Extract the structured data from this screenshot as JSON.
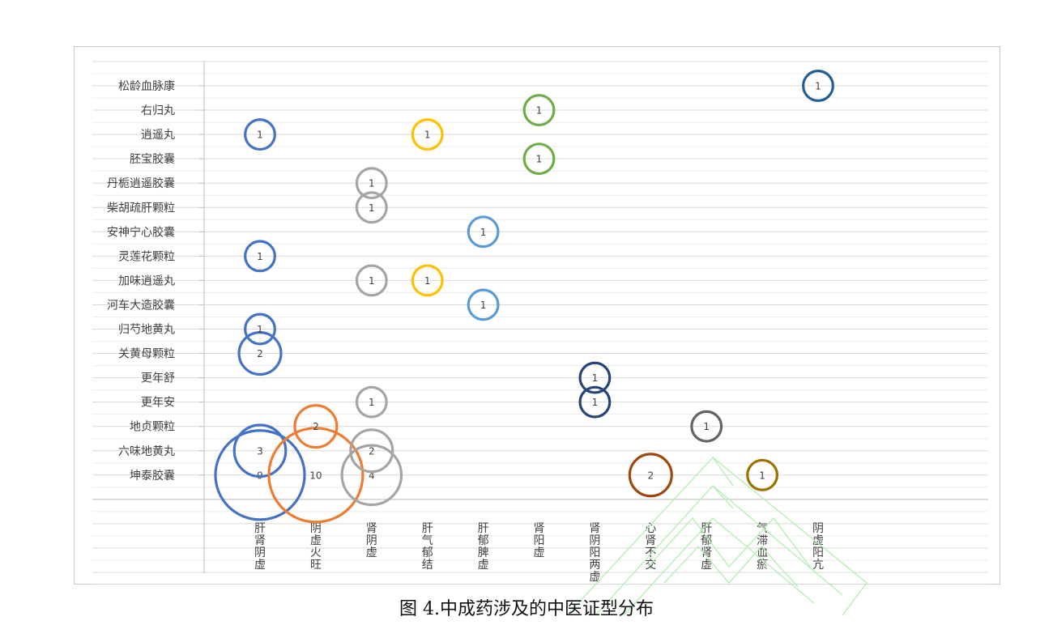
{
  "caption": "图 4.中成药涉及的中医证型分布",
  "chart_data": {
    "type": "bubble",
    "title": "",
    "xlabel": "",
    "ylabel": "",
    "grid": true,
    "legend": "none",
    "x_categories": [
      "肝肾阴虚",
      "阴虚火旺",
      "肾阴虚",
      "肝气郁结",
      "肝郁脾虚",
      "肾阳虚",
      "肾阴阳两虚",
      "心肾不交",
      "肝郁肾虚",
      "气滞血瘀",
      "阴虚阳亢"
    ],
    "y_categories": [
      "坤泰胶囊",
      "六味地黄丸",
      "地贞颗粒",
      "更年安",
      "更年舒",
      "关黄母颗粒",
      "归芍地黄丸",
      "河车大造胶囊",
      "加味逍遥丸",
      "灵莲花颗粒",
      "安神宁心胶囊",
      "柴胡疏肝颗粒",
      "丹栀逍遥胶囊",
      "胚宝胶囊",
      "逍遥丸",
      "右归丸",
      "松龄血脉康"
    ],
    "series": [
      {
        "color": "#4472c4",
        "points": [
          {
            "x": "肝肾阴虚",
            "y": "坤泰胶囊",
            "value": 9
          },
          {
            "x": "肝肾阴虚",
            "y": "六味地黄丸",
            "value": 3
          },
          {
            "x": "肝肾阴虚",
            "y": "关黄母颗粒",
            "value": 2
          },
          {
            "x": "肝肾阴虚",
            "y": "归芍地黄丸",
            "value": 1
          },
          {
            "x": "肝肾阴虚",
            "y": "灵莲花颗粒",
            "value": 1
          },
          {
            "x": "肝肾阴虚",
            "y": "逍遥丸",
            "value": 1
          }
        ]
      },
      {
        "color": "#ed7d31",
        "points": [
          {
            "x": "阴虚火旺",
            "y": "坤泰胶囊",
            "value": 10
          },
          {
            "x": "阴虚火旺",
            "y": "地贞颗粒",
            "value": 2
          }
        ]
      },
      {
        "color": "#a5a5a5",
        "points": [
          {
            "x": "肾阴虚",
            "y": "坤泰胶囊",
            "value": 4
          },
          {
            "x": "肾阴虚",
            "y": "六味地黄丸",
            "value": 2
          },
          {
            "x": "肾阴虚",
            "y": "更年安",
            "value": 1
          },
          {
            "x": "肾阴虚",
            "y": "加味逍遥丸",
            "value": 1
          },
          {
            "x": "肾阴虚",
            "y": "柴胡疏肝颗粒",
            "value": 1
          },
          {
            "x": "肾阴虚",
            "y": "丹栀逍遥胶囊",
            "value": 1
          }
        ]
      },
      {
        "color": "#ffc000",
        "points": [
          {
            "x": "肝气郁结",
            "y": "加味逍遥丸",
            "value": 1
          },
          {
            "x": "肝气郁结",
            "y": "逍遥丸",
            "value": 1
          }
        ]
      },
      {
        "color": "#5b9bd5",
        "points": [
          {
            "x": "肝郁脾虚",
            "y": "河车大造胶囊",
            "value": 1
          },
          {
            "x": "肝郁脾虚",
            "y": "安神宁心胶囊",
            "value": 1
          }
        ]
      },
      {
        "color": "#70ad47",
        "points": [
          {
            "x": "肾阳虚",
            "y": "胚宝胶囊",
            "value": 1
          },
          {
            "x": "肾阳虚",
            "y": "右归丸",
            "value": 1
          }
        ]
      },
      {
        "color": "#264478",
        "points": [
          {
            "x": "肾阴阳两虚",
            "y": "更年安",
            "value": 1
          },
          {
            "x": "肾阴阳两虚",
            "y": "更年舒",
            "value": 1
          }
        ]
      },
      {
        "color": "#9e480e",
        "points": [
          {
            "x": "心肾不交",
            "y": "坤泰胶囊",
            "value": 2
          }
        ]
      },
      {
        "color": "#636363",
        "points": [
          {
            "x": "肝郁肾虚",
            "y": "地贞颗粒",
            "value": 1
          }
        ]
      },
      {
        "color": "#997300",
        "points": [
          {
            "x": "气滞血瘀",
            "y": "坤泰胶囊",
            "value": 1
          }
        ]
      },
      {
        "color": "#255e91",
        "points": [
          {
            "x": "阴虚阳亢",
            "y": "松龄血脉康",
            "value": 1
          }
        ]
      }
    ]
  },
  "colors": {
    "gridline": "#d9d9d9",
    "axis": "#bfbfbf",
    "label_text": "#404040",
    "watermark": "#b6f0b6"
  }
}
